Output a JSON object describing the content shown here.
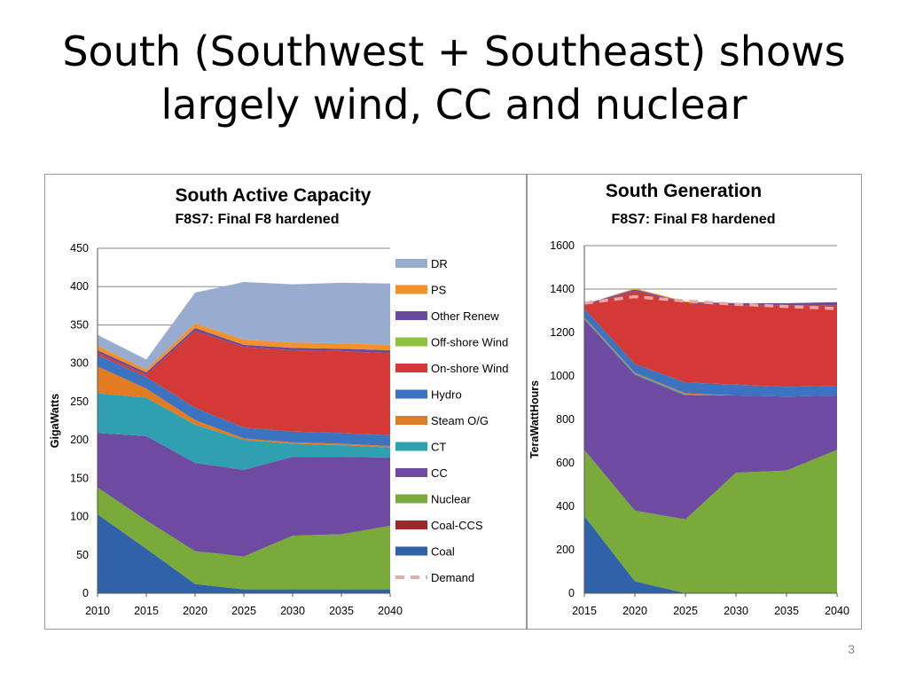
{
  "slide": {
    "title_line1": "South (Southwest + Southeast) shows",
    "title_line2": "largely wind, CC and nuclear",
    "page_number": "3"
  },
  "legend": [
    {
      "name": "DR",
      "color": "#98acd0"
    },
    {
      "name": "PS",
      "color": "#f4912a"
    },
    {
      "name": "Other Renew",
      "color": "#6b4a9e"
    },
    {
      "name": "Off-shore Wind",
      "color": "#8fc23e"
    },
    {
      "name": "On-shore Wind",
      "color": "#d33a36"
    },
    {
      "name": "Hydro",
      "color": "#3b73c0"
    },
    {
      "name": "Steam O/G",
      "color": "#e27b22"
    },
    {
      "name": "CT",
      "color": "#2ea0b0"
    },
    {
      "name": "CC",
      "color": "#6e4aa0"
    },
    {
      "name": "Nuclear",
      "color": "#7aab3a"
    },
    {
      "name": "Coal-CCS",
      "color": "#9a2a2a"
    },
    {
      "name": "Coal",
      "color": "#2f62a8"
    },
    {
      "name": "Demand",
      "color": "#e8a8a8"
    }
  ],
  "chart_data": [
    {
      "type": "area",
      "title": "South Active Capacity",
      "subtitle": "F8S7: Final F8 hardened",
      "ylabel": "GigaWatts",
      "xlabel": "",
      "x": [
        "2010",
        "2015",
        "2020",
        "2025",
        "2030",
        "2035",
        "2040"
      ],
      "ylim": [
        0,
        450
      ],
      "yticks": [
        "0",
        "50",
        "100",
        "150",
        "200",
        "250",
        "300",
        "350",
        "400",
        "450"
      ],
      "grid": true,
      "stacked": true,
      "series": [
        {
          "name": "Coal",
          "values": [
            103,
            58,
            12,
            5,
            5,
            5,
            5
          ]
        },
        {
          "name": "Coal-CCS",
          "values": [
            0,
            0,
            0,
            0,
            0,
            0,
            0
          ]
        },
        {
          "name": "Nuclear",
          "values": [
            35,
            37,
            43,
            43,
            70,
            72,
            83
          ]
        },
        {
          "name": "CC",
          "values": [
            71,
            110,
            115,
            113,
            103,
            101,
            89
          ]
        },
        {
          "name": "CT",
          "values": [
            52,
            50,
            50,
            39,
            17,
            15,
            13
          ]
        },
        {
          "name": "Steam O/G",
          "values": [
            35,
            12,
            6,
            2,
            2,
            2,
            2
          ]
        },
        {
          "name": "Hydro",
          "values": [
            15,
            15,
            16,
            14,
            14,
            14,
            14
          ]
        },
        {
          "name": "On-shore Wind",
          "values": [
            3,
            3,
            100,
            105,
            106,
            107,
            107
          ]
        },
        {
          "name": "Off-shore Wind",
          "values": [
            0,
            0,
            0,
            0,
            0,
            0,
            0
          ]
        },
        {
          "name": "Other Renew",
          "values": [
            3,
            3,
            4,
            3,
            3,
            3,
            4
          ]
        },
        {
          "name": "PS",
          "values": [
            6,
            4,
            6,
            7,
            7,
            7,
            7
          ]
        },
        {
          "name": "DR",
          "values": [
            14,
            13,
            40,
            75,
            76,
            79,
            80
          ]
        }
      ]
    },
    {
      "type": "area",
      "title": "South Generation",
      "subtitle": "F8S7: Final F8 hardened",
      "ylabel": "TeraWattHours",
      "xlabel": "",
      "x": [
        "2015",
        "2020",
        "2025",
        "2030",
        "2035",
        "2040"
      ],
      "ylim": [
        0,
        1600
      ],
      "yticks": [
        "0",
        "200",
        "400",
        "600",
        "800",
        "1000",
        "1200",
        "1400",
        "1600"
      ],
      "grid": true,
      "stacked": true,
      "series": [
        {
          "name": "Coal",
          "values": [
            355,
            55,
            0,
            0,
            0,
            0
          ]
        },
        {
          "name": "Coal-CCS",
          "values": [
            0,
            0,
            0,
            0,
            0,
            0
          ]
        },
        {
          "name": "Nuclear",
          "values": [
            305,
            325,
            340,
            555,
            565,
            660
          ]
        },
        {
          "name": "CC",
          "values": [
            600,
            625,
            570,
            355,
            340,
            250
          ]
        },
        {
          "name": "CT",
          "values": [
            5,
            5,
            5,
            0,
            0,
            0
          ]
        },
        {
          "name": "Steam O/G",
          "values": [
            5,
            5,
            5,
            0,
            0,
            0
          ]
        },
        {
          "name": "Hydro",
          "values": [
            40,
            40,
            50,
            50,
            45,
            45
          ]
        },
        {
          "name": "On-shore Wind",
          "values": [
            15,
            335,
            365,
            365,
            375,
            370
          ]
        },
        {
          "name": "Off-shore Wind",
          "values": [
            0,
            0,
            0,
            0,
            0,
            0
          ]
        },
        {
          "name": "Other Renew",
          "values": [
            5,
            8,
            5,
            10,
            10,
            15
          ]
        },
        {
          "name": "PS",
          "values": [
            0,
            5,
            3,
            0,
            0,
            0
          ]
        },
        {
          "name": "DR",
          "values": [
            0,
            0,
            0,
            0,
            0,
            0
          ]
        }
      ],
      "demand": [
        1335,
        1365,
        1345,
        1330,
        1320,
        1310
      ]
    }
  ]
}
